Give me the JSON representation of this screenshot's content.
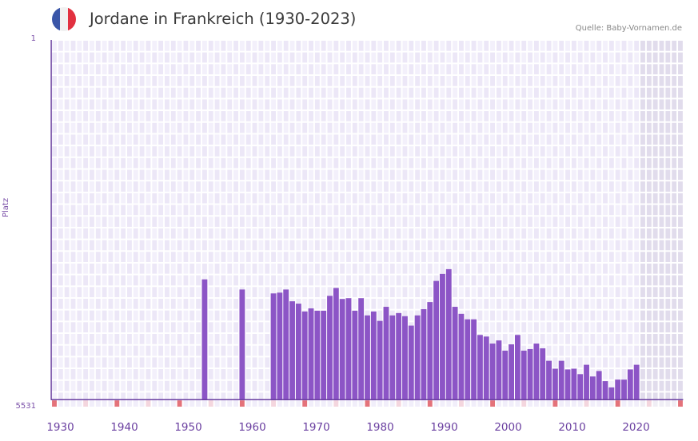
{
  "header": {
    "title": "Jordane in Frankreich (1930-2023)",
    "source": "Quelle: Baby-Vornamen.de",
    "flag_colors": [
      "#3a56a8",
      "#f1f1f1",
      "#e23140"
    ]
  },
  "axis": {
    "y_title": "Platz",
    "y_top_label": "1",
    "y_bottom_label": "5531",
    "x_labels": [
      "1930",
      "1940",
      "1950",
      "1960",
      "1970",
      "1980",
      "1990",
      "2000",
      "2010",
      "2020"
    ]
  },
  "colors": {
    "bar": "#8c55c6",
    "axis": "#6a3fa0",
    "grid_bg_a": "#f3f0fb",
    "grid_bg_b": "#ece7f7",
    "future_bg": "#e1dcec",
    "decade_marker": "#e4727a",
    "half_decade_marker": "#f4d6de"
  },
  "chart_data": {
    "type": "bar",
    "title": "Jordane in Frankreich (1930-2023)",
    "xlabel": "",
    "ylabel": "Platz",
    "ylim": [
      5531,
      1
    ],
    "y_inverted": true,
    "x_range": [
      1928,
      2028
    ],
    "future_from": 2022,
    "grid": true,
    "legend": null,
    "categories": [
      1952,
      1958,
      1963,
      1964,
      1965,
      1966,
      1967,
      1968,
      1969,
      1970,
      1971,
      1972,
      1973,
      1974,
      1975,
      1976,
      1977,
      1978,
      1979,
      1980,
      1981,
      1982,
      1983,
      1984,
      1985,
      1986,
      1987,
      1988,
      1989,
      1990,
      1991,
      1992,
      1993,
      1994,
      1995,
      1996,
      1997,
      1998,
      1999,
      2000,
      2001,
      2002,
      2003,
      2004,
      2005,
      2006,
      2007,
      2008,
      2009,
      2010,
      2011,
      2012,
      2013,
      2014,
      2015,
      2016,
      2017,
      2018,
      2019,
      2020,
      2021
    ],
    "values": [
      3682,
      3838,
      3898,
      3886,
      3838,
      4019,
      4055,
      4176,
      4128,
      4164,
      4164,
      3935,
      3814,
      3983,
      3971,
      4164,
      3971,
      4236,
      4176,
      4320,
      4104,
      4236,
      4200,
      4248,
      4393,
      4236,
      4140,
      4031,
      3706,
      3598,
      3525,
      4104,
      4212,
      4296,
      4296,
      4537,
      4561,
      4669,
      4621,
      4778,
      4681,
      4537,
      4778,
      4754,
      4669,
      4742,
      4934,
      5055,
      4934,
      5067,
      5055,
      5139,
      4995,
      5175,
      5091,
      5247,
      5343,
      5223,
      5223,
      5067,
      4995
    ]
  }
}
